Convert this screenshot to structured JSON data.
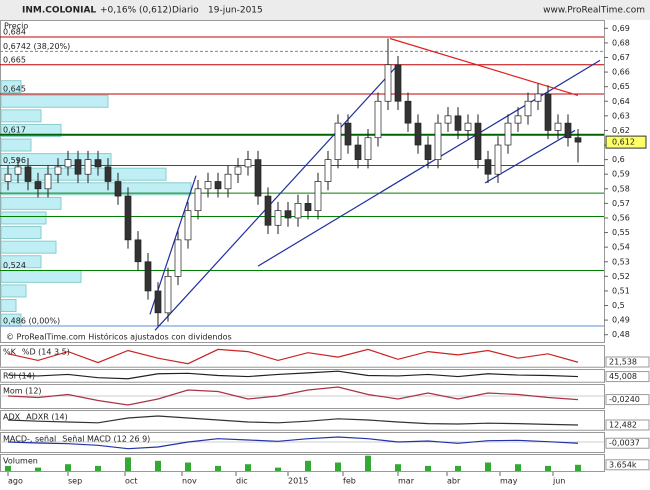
{
  "chart_data": {
    "type": "candlestick",
    "header": {
      "symbol": "INM.COLONIAL",
      "change": "+0,16% (0,612)",
      "period": "Diario",
      "date": "19-jun-2015",
      "site": "www.ProRealTime.com"
    },
    "price_label": "Precio",
    "footer": "© ProRealTime.com  Históricos ajustados con dividendos",
    "ylim": [
      0.475,
      0.695
    ],
    "yticks": [
      {
        "value": 0.48,
        "label": "0,48"
      },
      {
        "value": 0.49,
        "label": "0,49"
      },
      {
        "value": 0.5,
        "label": "0,5"
      },
      {
        "value": 0.51,
        "label": "0,51"
      },
      {
        "value": 0.52,
        "label": "0,52"
      },
      {
        "value": 0.53,
        "label": "0,53"
      },
      {
        "value": 0.54,
        "label": "0,54"
      },
      {
        "value": 0.55,
        "label": "0,55"
      },
      {
        "value": 0.56,
        "label": "0,56"
      },
      {
        "value": 0.57,
        "label": "0,57"
      },
      {
        "value": 0.58,
        "label": "0,58"
      },
      {
        "value": 0.59,
        "label": "0,59"
      },
      {
        "value": 0.6,
        "label": "0,6"
      },
      {
        "value": 0.61,
        "label": "0,61"
      },
      {
        "value": 0.62,
        "label": "0,62"
      },
      {
        "value": 0.63,
        "label": "0,63"
      },
      {
        "value": 0.64,
        "label": "0,64"
      },
      {
        "value": 0.65,
        "label": "0,65"
      },
      {
        "value": 0.66,
        "label": "0,66"
      },
      {
        "value": 0.67,
        "label": "0,67"
      },
      {
        "value": 0.68,
        "label": "0,68"
      },
      {
        "value": 0.69,
        "label": "0,69"
      }
    ],
    "x_labels": [
      {
        "label": "ago",
        "index": 0
      },
      {
        "label": "sep",
        "index": 6
      },
      {
        "label": "oct",
        "index": 11.7
      },
      {
        "label": "nov",
        "index": 17.4
      },
      {
        "label": "dic",
        "index": 22.8
      },
      {
        "label": "2015",
        "index": 28
      },
      {
        "label": "feb",
        "index": 33.5
      },
      {
        "label": "mar",
        "index": 39
      },
      {
        "label": "abr",
        "index": 43.9
      },
      {
        "label": "may",
        "index": 49.2
      },
      {
        "label": "jun",
        "index": 54.5
      }
    ],
    "up_color": "#ffffff",
    "down_color": "#333333",
    "open": [
      0.585,
      0.59,
      0.595,
      0.585,
      0.58,
      0.59,
      0.595,
      0.6,
      0.59,
      0.6,
      0.595,
      0.585,
      0.575,
      0.545,
      0.53,
      0.51,
      0.495,
      0.52,
      0.545,
      0.565,
      0.58,
      0.585,
      0.58,
      0.59,
      0.595,
      0.6,
      0.575,
      0.555,
      0.565,
      0.56,
      0.57,
      0.565,
      0.585,
      0.6,
      0.625,
      0.61,
      0.6,
      0.615,
      0.64,
      0.665,
      0.64,
      0.625,
      0.61,
      0.6,
      0.625,
      0.63,
      0.62,
      0.625,
      0.6,
      0.59,
      0.61,
      0.625,
      0.63,
      0.64,
      0.645,
      0.62,
      0.625,
      0.615
    ],
    "high": [
      0.596,
      0.601,
      0.601,
      0.591,
      0.596,
      0.601,
      0.606,
      0.606,
      0.606,
      0.606,
      0.601,
      0.591,
      0.581,
      0.551,
      0.536,
      0.516,
      0.526,
      0.551,
      0.571,
      0.586,
      0.591,
      0.591,
      0.596,
      0.601,
      0.606,
      0.606,
      0.581,
      0.571,
      0.571,
      0.576,
      0.576,
      0.591,
      0.606,
      0.631,
      0.631,
      0.616,
      0.621,
      0.646,
      0.683,
      0.671,
      0.646,
      0.631,
      0.616,
      0.631,
      0.636,
      0.636,
      0.631,
      0.631,
      0.606,
      0.616,
      0.631,
      0.636,
      0.646,
      0.652,
      0.651,
      0.631,
      0.631,
      0.621
    ],
    "low": [
      0.579,
      0.584,
      0.579,
      0.574,
      0.574,
      0.584,
      0.589,
      0.584,
      0.584,
      0.589,
      0.579,
      0.569,
      0.539,
      0.524,
      0.504,
      0.486,
      0.489,
      0.514,
      0.539,
      0.559,
      0.574,
      0.574,
      0.574,
      0.584,
      0.589,
      0.569,
      0.549,
      0.549,
      0.554,
      0.554,
      0.559,
      0.559,
      0.579,
      0.594,
      0.604,
      0.594,
      0.594,
      0.609,
      0.634,
      0.634,
      0.619,
      0.604,
      0.594,
      0.594,
      0.619,
      0.614,
      0.614,
      0.594,
      0.584,
      0.584,
      0.604,
      0.619,
      0.624,
      0.634,
      0.614,
      0.614,
      0.609,
      0.598
    ],
    "close": [
      0.59,
      0.595,
      0.585,
      0.58,
      0.59,
      0.595,
      0.6,
      0.59,
      0.6,
      0.595,
      0.585,
      0.575,
      0.545,
      0.53,
      0.51,
      0.495,
      0.52,
      0.545,
      0.565,
      0.58,
      0.585,
      0.58,
      0.59,
      0.595,
      0.6,
      0.575,
      0.555,
      0.565,
      0.56,
      0.57,
      0.565,
      0.585,
      0.6,
      0.625,
      0.61,
      0.6,
      0.615,
      0.64,
      0.665,
      0.64,
      0.625,
      0.61,
      0.6,
      0.625,
      0.63,
      0.62,
      0.625,
      0.6,
      0.59,
      0.61,
      0.625,
      0.63,
      0.64,
      0.645,
      0.62,
      0.625,
      0.615,
      0.612
    ],
    "last_close_label": "0,612",
    "levels": [
      {
        "value": 0.684,
        "label": "0,684",
        "color": "#c00000",
        "width": 1,
        "dash": false
      },
      {
        "value": 0.6742,
        "label": "0,6742 (38,20%)",
        "color": "#5b8fd0",
        "width": 1,
        "dash": true
      },
      {
        "value": 0.665,
        "label": "0,665",
        "color": "#c00000",
        "width": 1,
        "dash": false
      },
      {
        "value": 0.645,
        "label": "0,645",
        "color": "#c00000",
        "width": 1,
        "dash": false
      },
      {
        "value": 0.617,
        "label": "0,617",
        "color": "#006400",
        "width": 2,
        "dash": false
      },
      {
        "value": 0.596,
        "label": "0,596",
        "color": "#008000",
        "width": 1,
        "dash": false
      },
      {
        "value": 0.577,
        "label": null,
        "color": "#008000",
        "width": 1,
        "dash": false
      },
      {
        "value": 0.561,
        "label": null,
        "color": "#008000",
        "width": 1,
        "dash": false
      },
      {
        "value": 0.524,
        "label": "0,524",
        "color": "#008000",
        "width": 1,
        "dash": false
      },
      {
        "value": 0.486,
        "label": "0,486 (0,00%)",
        "color": "#5b8fd0",
        "width": 1,
        "dash": false
      }
    ],
    "trendlines": [
      {
        "x": [
          14.7,
          39
        ],
        "y": [
          0.483,
          0.665
        ],
        "color": "#1f2fa0"
      },
      {
        "x": [
          25,
          59.2
        ],
        "y": [
          0.527,
          0.668
        ],
        "color": "#1f2fa0"
      },
      {
        "x": [
          14.2,
          18.8
        ],
        "y": [
          0.494,
          0.589
        ],
        "color": "#1f2fa0"
      },
      {
        "x": [
          47.7,
          56.7
        ],
        "y": [
          0.584,
          0.62
        ],
        "color": "#1f2fa0"
      },
      {
        "x": [
          38.2,
          57
        ],
        "y": [
          0.683,
          0.644
        ],
        "color": "#e02020"
      }
    ],
    "volume_profile": {
      "color": "#bfeff5",
      "prices": [
        0.49,
        0.5,
        0.51,
        0.52,
        0.53,
        0.54,
        0.55,
        0.56,
        0.57,
        0.58,
        0.59,
        0.6,
        0.61,
        0.62,
        0.63,
        0.64,
        0.65
      ],
      "values": [
        20,
        15,
        25,
        80,
        40,
        55,
        40,
        45,
        60,
        190,
        165,
        110,
        30,
        60,
        40,
        107,
        20
      ]
    },
    "panels": [
      {
        "name": "%K",
        "extra": "%D (14 3 5)",
        "color": "#cc2222",
        "ylim": [
          0,
          100
        ],
        "values": [
          60,
          30,
          70,
          20,
          75,
          40,
          15,
          80,
          70,
          30,
          65,
          45,
          80,
          35,
          70,
          55,
          75,
          40,
          60,
          21.538
        ],
        "last_label": "21,538"
      },
      {
        "name": "RSI (14)",
        "extra": null,
        "color": "#222222",
        "ylim": [
          20,
          80
        ],
        "values": [
          52,
          48,
          55,
          40,
          35,
          58,
          60,
          50,
          45,
          55,
          62,
          70,
          50,
          48,
          55,
          45,
          58,
          52,
          50,
          45.008
        ],
        "last_label": "45,008"
      },
      {
        "name": "Mom (12)",
        "extra": null,
        "color": "#aa3344",
        "ylim": [
          -0.08,
          0.08
        ],
        "values": [
          0,
          -0.01,
          0.01,
          -0.03,
          -0.06,
          -0.02,
          0.04,
          0.03,
          -0.02,
          0,
          0.04,
          0.06,
          0.01,
          -0.02,
          0.02,
          -0.02,
          0.02,
          0.01,
          -0.01,
          -0.024
        ],
        "last_label": "-0,0240"
      },
      {
        "name": "ADX",
        "extra": "ADXR (14)",
        "color": "#333333",
        "ylim": [
          0,
          50
        ],
        "values": [
          25,
          22,
          20,
          18,
          30,
          35,
          30,
          25,
          20,
          18,
          22,
          28,
          25,
          20,
          16,
          15,
          17,
          16,
          14,
          12.482
        ],
        "last_label": "12,482"
      },
      {
        "name": "MACD-, señal",
        "extra": "Señal  MACD (12 26 9)",
        "color": "#2233aa",
        "ylim": [
          -0.03,
          0.03
        ],
        "values": [
          0,
          -0.003,
          -0.005,
          -0.01,
          -0.02,
          -0.015,
          0,
          0.01,
          0.006,
          0.002,
          0.01,
          0.015,
          0.01,
          0,
          0.003,
          -0.004,
          0.004,
          0.005,
          0.001,
          -0.0037
        ],
        "last_label": "-0,0037"
      },
      {
        "name": "Volumen",
        "extra": null,
        "color": "#33aa33",
        "ylim": [
          0,
          10000
        ],
        "bars": true,
        "values": [
          3000,
          2000,
          4000,
          3000,
          8000,
          6000,
          5000,
          3000,
          4000,
          2000,
          6000,
          5000,
          9000,
          4000,
          3000,
          3000,
          5000,
          4000,
          3000,
          3654
        ],
        "last_label": "3.654k"
      }
    ]
  }
}
